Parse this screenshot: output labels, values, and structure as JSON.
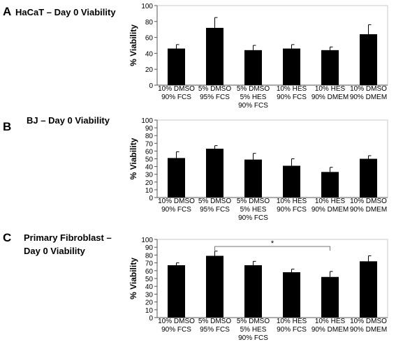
{
  "chart_data": [
    {
      "type": "bar",
      "panel_label": "A",
      "title_lines": [
        "HaCaT – Day 0 Viability"
      ],
      "ylabel": "% Viability",
      "xlabel": "",
      "ylim": [
        0,
        100
      ],
      "yticks": [
        0,
        20,
        40,
        60,
        80,
        100
      ],
      "grid": false,
      "categories": [
        [
          "10% DMSO",
          "90% FCS"
        ],
        [
          "5% DMSO",
          "95% FCS"
        ],
        [
          "5% DMSO",
          "5% HES",
          "90% FCS"
        ],
        [
          "10% HES",
          "90% FCS"
        ],
        [
          "10% HES",
          "90% DMEM"
        ],
        [
          "10% DMSO",
          "90% DMEM"
        ]
      ],
      "values": [
        46,
        72,
        44,
        46,
        44,
        64
      ],
      "errors": [
        5,
        13,
        6,
        5,
        4,
        12
      ],
      "bar_color": "#000000"
    },
    {
      "type": "bar",
      "panel_label": "B",
      "title_lines": [
        "BJ – Day 0 Viability"
      ],
      "ylabel": "% Viability",
      "xlabel": "",
      "ylim": [
        0,
        100
      ],
      "yticks": [
        0,
        10,
        20,
        30,
        40,
        50,
        60,
        70,
        80,
        90,
        100
      ],
      "grid": false,
      "categories": [
        [
          "10% DMSO",
          "90% FCS"
        ],
        [
          "5% DMSO",
          "95% FCS"
        ],
        [
          "5% DMSO",
          "5% HES",
          "90% FCS"
        ],
        [
          "10% HES",
          "90% FCS"
        ],
        [
          "10% HES",
          "90% DMEM"
        ],
        [
          "10% DMSO",
          "90% DMEM"
        ]
      ],
      "values": [
        51,
        63,
        49,
        41,
        33,
        50
      ],
      "errors": [
        8,
        4,
        8,
        9,
        6,
        4
      ],
      "bar_color": "#000000"
    },
    {
      "type": "bar",
      "panel_label": "C",
      "title_lines": [
        "Primary Fibroblast –",
        "Day 0 Viability"
      ],
      "ylabel": "% Viability",
      "xlabel": "",
      "ylim": [
        0,
        100
      ],
      "yticks": [
        0,
        10,
        20,
        30,
        40,
        50,
        60,
        70,
        80,
        90,
        100
      ],
      "grid": false,
      "categories": [
        [
          "10% DMSO",
          "90% FCS"
        ],
        [
          "5% DMSO",
          "95% FCS"
        ],
        [
          "5% DMSO",
          "5% HES",
          "90% FCS"
        ],
        [
          "10% HES",
          "90% FCS"
        ],
        [
          "10% HES",
          "90% DMEM"
        ],
        [
          "10% DMSO",
          "90% DMEM"
        ]
      ],
      "values": [
        67,
        79,
        67,
        58,
        52,
        72
      ],
      "errors": [
        3,
        6,
        5,
        4,
        7,
        7
      ],
      "bar_color": "#000000",
      "significance": [
        {
          "from_category": 1,
          "to_category": 4,
          "label": "*",
          "level": 91
        }
      ]
    }
  ]
}
